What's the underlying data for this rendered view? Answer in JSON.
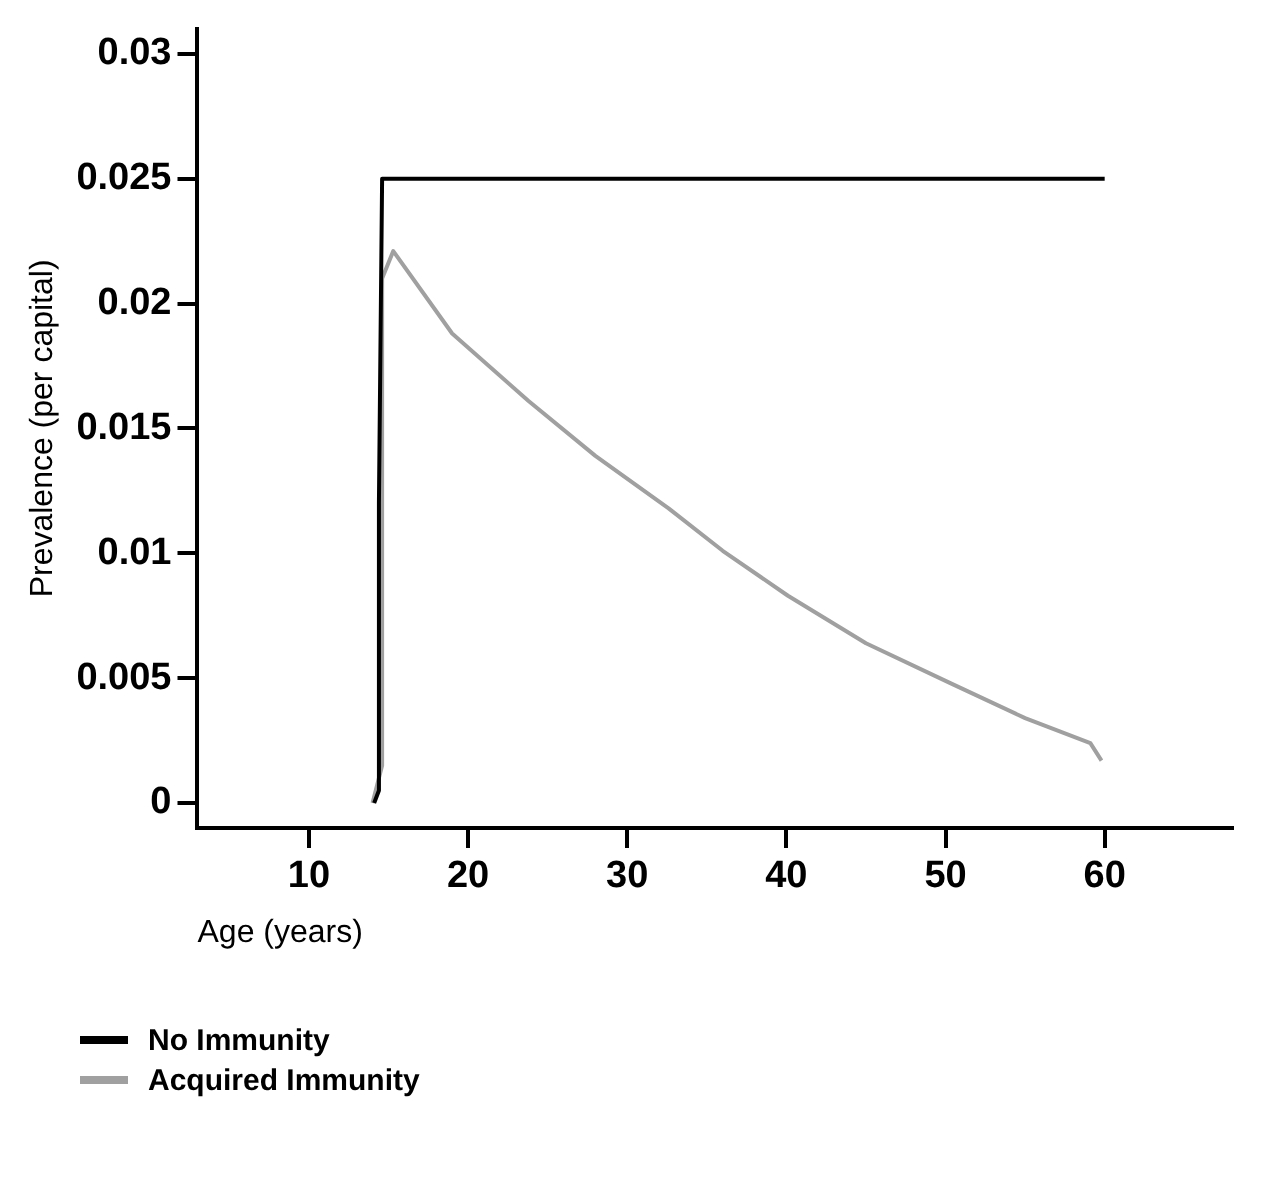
{
  "chart_data": {
    "type": "line",
    "xlabel": "Age (years)",
    "ylabel": "Prevalence (per capital)",
    "xlim": [
      3,
      68
    ],
    "xticks": [
      10,
      20,
      30,
      40,
      50,
      60
    ],
    "ylim": [
      -0.001,
      0.031
    ],
    "yticks": [
      0,
      0.005,
      0.01,
      0.015,
      0.02,
      0.025,
      0.03
    ],
    "grid": false,
    "legend": "bottom left",
    "marker": "none",
    "line_style": "solid",
    "series": [
      {
        "name": "No Immunity",
        "color": "#000000",
        "x": [
          14.1,
          14.4,
          14.4,
          14.6,
          60
        ],
        "values": [
          0,
          0.0005,
          0.012,
          0.025,
          0.025
        ]
      },
      {
        "name": "Acquired Immunity",
        "color": "#a0a0a0",
        "x": [
          14,
          14.6,
          14.6,
          15.3,
          19,
          23.8,
          28,
          32.6,
          36,
          40.1,
          45,
          50.3,
          55,
          59.1,
          59.8
        ],
        "values": [
          0,
          0.0015,
          0.021,
          0.0221,
          0.0188,
          0.0161,
          0.0139,
          0.0118,
          0.0101,
          0.0083,
          0.0064,
          0.0048,
          0.0034,
          0.0024,
          0.0017
        ]
      }
    ]
  }
}
